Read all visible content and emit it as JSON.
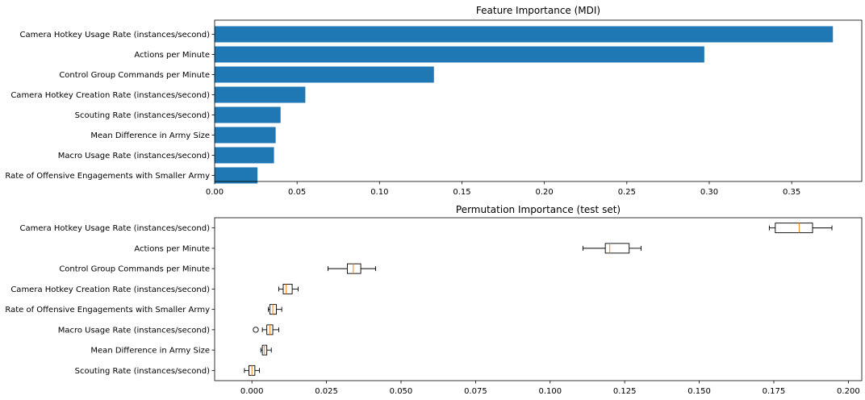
{
  "chart_data": [
    {
      "type": "bar",
      "orientation": "horizontal",
      "title": "Feature Importance (MDI)",
      "xlabel": "",
      "ylabel": "",
      "xlim": [
        0,
        0.3925
      ],
      "xticks": [
        "0.00",
        "0.05",
        "0.10",
        "0.15",
        "0.20",
        "0.25",
        "0.30",
        "0.35"
      ],
      "xtick_values": [
        0,
        0.05,
        0.1,
        0.15,
        0.2,
        0.25,
        0.3,
        0.35
      ],
      "bar_color": "#1f77b4",
      "grid": false,
      "categories": [
        "Camera Hotkey Usage Rate (instances/second)",
        "Actions per Minute",
        "Control Group Commands per Minute",
        "Camera Hotkey Creation Rate (instances/second)",
        "Scouting Rate (instances/second)",
        "Mean Difference in Army Size",
        "Macro Usage Rate (instances/second)",
        "Rate of Offensive Engagements with Smaller Army"
      ],
      "values": [
        0.375,
        0.297,
        0.133,
        0.055,
        0.04,
        0.037,
        0.036,
        0.026
      ]
    },
    {
      "type": "box",
      "orientation": "horizontal",
      "title": "Permutation Importance (test set)",
      "xlabel": "",
      "ylabel": "",
      "xlim": [
        -0.0125,
        0.2045
      ],
      "xticks": [
        "0.000",
        "0.025",
        "0.050",
        "0.075",
        "0.100",
        "0.125",
        "0.150",
        "0.175",
        "0.200"
      ],
      "xtick_values": [
        0,
        0.025,
        0.05,
        0.075,
        0.1,
        0.125,
        0.15,
        0.175,
        0.2
      ],
      "median_color": "#ff7f0e",
      "grid": false,
      "categories": [
        "Camera Hotkey Usage Rate (instances/second)",
        "Actions per Minute",
        "Control Group Commands per Minute",
        "Camera Hotkey Creation Rate (instances/second)",
        "Rate of Offensive Engagements with Smaller Army",
        "Macro Usage Rate (instances/second)",
        "Mean Difference in Army Size",
        "Scouting Rate (instances/second)"
      ],
      "boxes": [
        {
          "whislo": 0.1735,
          "q1": 0.1755,
          "med": 0.1835,
          "q3": 0.188,
          "whishi": 0.1945,
          "fliers": []
        },
        {
          "whislo": 0.111,
          "q1": 0.1185,
          "med": 0.12,
          "q3": 0.1265,
          "whishi": 0.1305,
          "fliers": []
        },
        {
          "whislo": 0.0255,
          "q1": 0.032,
          "med": 0.034,
          "q3": 0.0365,
          "whishi": 0.0415,
          "fliers": []
        },
        {
          "whislo": 0.009,
          "q1": 0.0105,
          "med": 0.0115,
          "q3": 0.0135,
          "whishi": 0.0155,
          "fliers": []
        },
        {
          "whislo": 0.0055,
          "q1": 0.006,
          "med": 0.007,
          "q3": 0.0082,
          "whishi": 0.01,
          "fliers": []
        },
        {
          "whislo": 0.0035,
          "q1": 0.005,
          "med": 0.006,
          "q3": 0.007,
          "whishi": 0.009,
          "fliers": [
            0.0013
          ]
        },
        {
          "whislo": 0.003,
          "q1": 0.0035,
          "med": 0.0042,
          "q3": 0.005,
          "whishi": 0.0065,
          "fliers": []
        },
        {
          "whislo": -0.0025,
          "q1": -0.001,
          "med": 0.0,
          "q3": 0.001,
          "whishi": 0.0025,
          "fliers": []
        }
      ]
    }
  ]
}
